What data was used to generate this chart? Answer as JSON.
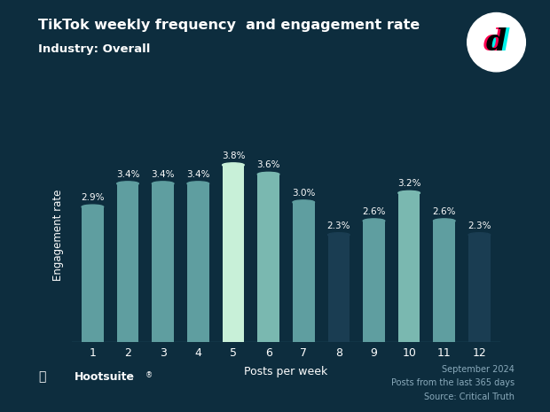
{
  "categories": [
    "1",
    "2",
    "3",
    "4",
    "5",
    "6",
    "7",
    "8",
    "9",
    "10",
    "11",
    "12"
  ],
  "values": [
    2.9,
    3.4,
    3.4,
    3.4,
    3.8,
    3.6,
    3.0,
    2.3,
    2.6,
    3.2,
    2.6,
    2.3
  ],
  "labels": [
    "2.9%",
    "3.4%",
    "3.4%",
    "3.4%",
    "3.8%",
    "3.6%",
    "3.0%",
    "2.3%",
    "2.6%",
    "3.2%",
    "2.6%",
    "2.3%"
  ],
  "bar_colors": [
    "#5f9ea0",
    "#5f9ea0",
    "#5f9ea0",
    "#5f9ea0",
    "#c8f0d8",
    "#7ab8b0",
    "#5f9ea0",
    "#1a3d52",
    "#5f9ea0",
    "#7ab8b0",
    "#5f9ea0",
    "#1a3d52"
  ],
  "bg_color": "#0d2d3e",
  "title": "TikTok weekly frequency  and engagement rate",
  "subtitle": "Industry: Overall",
  "xlabel": "Posts per week",
  "ylabel": "Engagement rate",
  "title_color": "#ffffff",
  "label_color": "#ffffff",
  "axis_label_color": "#ffffff",
  "tick_color": "#ffffff",
  "footer_right": "September 2024\nPosts from the last 365 days\nSource: Critical Truth",
  "ylim": [
    0,
    4.6
  ]
}
